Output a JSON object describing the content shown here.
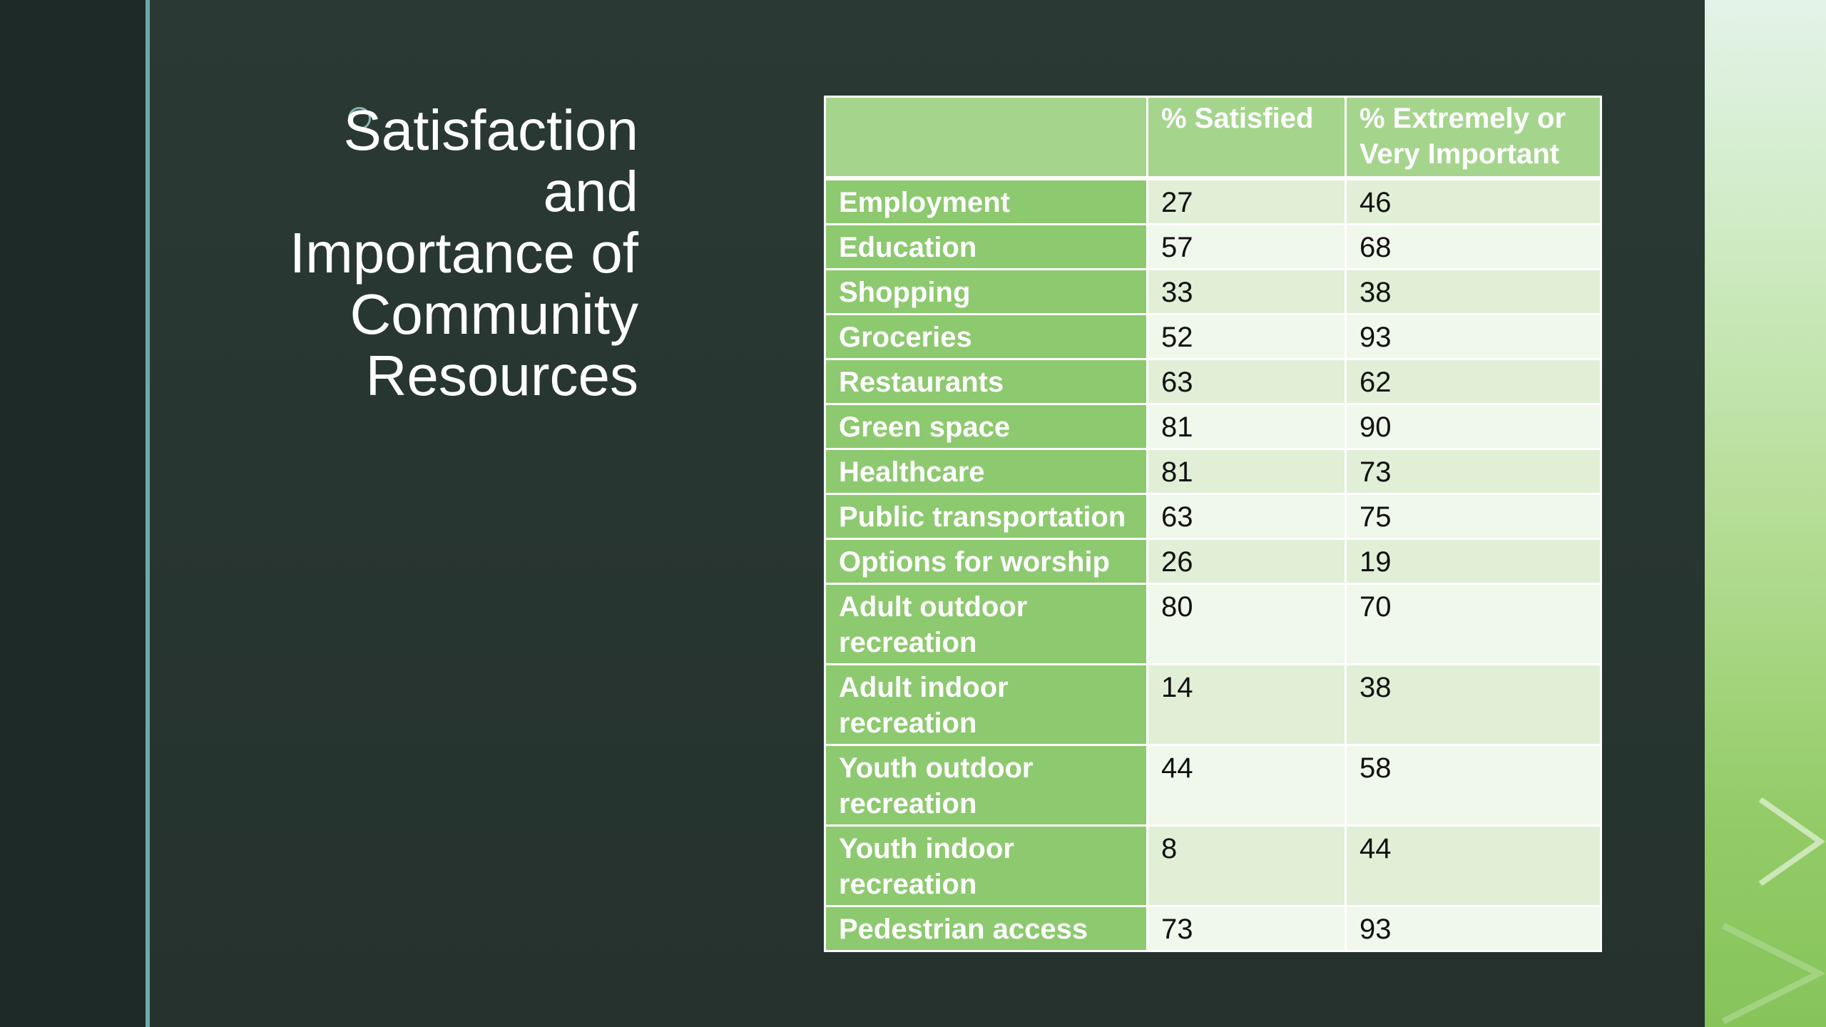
{
  "slide": {
    "title": "Satisfaction\nand\nImportance of\nCommunity\nResources"
  },
  "table": {
    "headers": [
      "",
      "% Satisfied",
      "% Extremely or Very Important"
    ],
    "rows": [
      {
        "resource": "Employment",
        "satisfied": "27",
        "important": "46"
      },
      {
        "resource": "Education",
        "satisfied": "57",
        "important": "68"
      },
      {
        "resource": "Shopping",
        "satisfied": "33",
        "important": "38"
      },
      {
        "resource": "Groceries",
        "satisfied": "52",
        "important": "93"
      },
      {
        "resource": "Restaurants",
        "satisfied": "63",
        "important": "62"
      },
      {
        "resource": "Green space",
        "satisfied": "81",
        "important": "90"
      },
      {
        "resource": "Healthcare",
        "satisfied": "81",
        "important": "73"
      },
      {
        "resource": "Public transportation",
        "satisfied": "63",
        "important": "75"
      },
      {
        "resource": "Options for worship",
        "satisfied": "26",
        "important": "19"
      },
      {
        "resource": "Adult outdoor recreation",
        "satisfied": "80",
        "important": "70"
      },
      {
        "resource": "Adult indoor recreation",
        "satisfied": "14",
        "important": "38"
      },
      {
        "resource": "Youth outdoor recreation",
        "satisfied": "44",
        "important": "58"
      },
      {
        "resource": "Youth indoor recreation",
        "satisfied": "8",
        "important": "44"
      },
      {
        "resource": "Pedestrian access",
        "satisfied": "73",
        "important": "93"
      }
    ]
  },
  "colors": {
    "background": "#2b3935",
    "accent_line": "#6fa7ad",
    "header_fill": "#a5d58d",
    "label_fill": "#8dc96f",
    "row_band_a": "#e0efd6",
    "row_band_b": "#f0f7eb"
  }
}
